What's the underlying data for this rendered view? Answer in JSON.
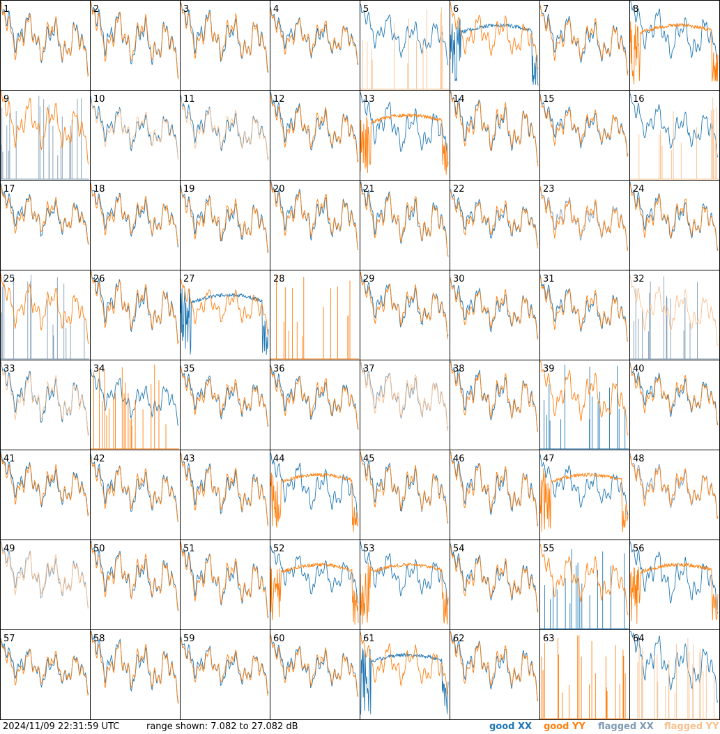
{
  "chart_data": {
    "type": "line",
    "layout": "small-multiples 8x8",
    "timestamp": "2024/11/09 22:31:59 UTC",
    "range_text": "range shown: 7.082 to 27.082 dB",
    "ylim": [
      7.082,
      27.082
    ],
    "legend": [
      {
        "label": "good XX",
        "color": "#1f77b4"
      },
      {
        "label": "good YY",
        "color": "#ff7f0e"
      },
      {
        "label": "flagged XX",
        "color": "#7f9bb5"
      },
      {
        "label": "flagged YY",
        "color": "#f9c08f"
      }
    ],
    "panels": [
      {
        "id": "1",
        "xx": "normal",
        "yy": "normal"
      },
      {
        "id": "2",
        "xx": "normal",
        "yy": "normal"
      },
      {
        "id": "3",
        "xx": "normal",
        "yy": "normal"
      },
      {
        "id": "4",
        "xx": "normal",
        "yy": "normal"
      },
      {
        "id": "5",
        "xx": "normal",
        "yy": "flagged-spikes"
      },
      {
        "id": "6",
        "xx": "degraded",
        "yy": "normal"
      },
      {
        "id": "7",
        "xx": "normal",
        "yy": "normal"
      },
      {
        "id": "8",
        "xx": "normal",
        "yy": "degraded"
      },
      {
        "id": "9",
        "xx": "flagged-spikes",
        "yy": "normal"
      },
      {
        "id": "10",
        "xx": "normal",
        "yy": "flagged"
      },
      {
        "id": "11",
        "xx": "normal",
        "yy": "flagged"
      },
      {
        "id": "12",
        "xx": "normal",
        "yy": "normal"
      },
      {
        "id": "13",
        "xx": "normal",
        "yy": "degraded"
      },
      {
        "id": "14",
        "xx": "normal",
        "yy": "normal"
      },
      {
        "id": "15",
        "xx": "normal",
        "yy": "normal"
      },
      {
        "id": "16",
        "xx": "normal",
        "yy": "flagged-spikes"
      },
      {
        "id": "17",
        "xx": "normal",
        "yy": "normal"
      },
      {
        "id": "18",
        "xx": "normal",
        "yy": "normal"
      },
      {
        "id": "19",
        "xx": "normal",
        "yy": "normal"
      },
      {
        "id": "20",
        "xx": "normal",
        "yy": "normal"
      },
      {
        "id": "21",
        "xx": "normal",
        "yy": "normal"
      },
      {
        "id": "22",
        "xx": "normal",
        "yy": "normal"
      },
      {
        "id": "23",
        "xx": "flagged",
        "yy": "normal"
      },
      {
        "id": "24",
        "xx": "normal",
        "yy": "normal"
      },
      {
        "id": "25",
        "xx": "flagged-spikes",
        "yy": "normal"
      },
      {
        "id": "26",
        "xx": "normal",
        "yy": "normal"
      },
      {
        "id": "27",
        "xx": "degraded",
        "yy": "normal"
      },
      {
        "id": "28",
        "xx": "none",
        "yy": "spikes"
      },
      {
        "id": "29",
        "xx": "normal",
        "yy": "normal"
      },
      {
        "id": "30",
        "xx": "normal",
        "yy": "normal"
      },
      {
        "id": "31",
        "xx": "normal",
        "yy": "normal"
      },
      {
        "id": "32",
        "xx": "flagged-spikes",
        "yy": "flagged"
      },
      {
        "id": "33",
        "xx": "normal",
        "yy": "flagged"
      },
      {
        "id": "34",
        "xx": "normal",
        "yy": "spikes"
      },
      {
        "id": "35",
        "xx": "normal",
        "yy": "normal"
      },
      {
        "id": "36",
        "xx": "normal",
        "yy": "normal"
      },
      {
        "id": "37",
        "xx": "flagged",
        "yy": "flagged"
      },
      {
        "id": "38",
        "xx": "normal",
        "yy": "normal"
      },
      {
        "id": "39",
        "xx": "spikes",
        "yy": "normal"
      },
      {
        "id": "40",
        "xx": "normal",
        "yy": "normal"
      },
      {
        "id": "41",
        "xx": "normal",
        "yy": "normal"
      },
      {
        "id": "42",
        "xx": "normal",
        "yy": "normal"
      },
      {
        "id": "43",
        "xx": "normal",
        "yy": "normal"
      },
      {
        "id": "44",
        "xx": "normal",
        "yy": "degraded"
      },
      {
        "id": "45",
        "xx": "normal",
        "yy": "normal"
      },
      {
        "id": "46",
        "xx": "normal",
        "yy": "normal"
      },
      {
        "id": "47",
        "xx": "normal",
        "yy": "degraded"
      },
      {
        "id": "48",
        "xx": "flagged",
        "yy": "normal"
      },
      {
        "id": "49",
        "xx": "flagged",
        "yy": "flagged"
      },
      {
        "id": "50",
        "xx": "normal",
        "yy": "normal"
      },
      {
        "id": "51",
        "xx": "normal",
        "yy": "normal"
      },
      {
        "id": "52",
        "xx": "normal",
        "yy": "degraded"
      },
      {
        "id": "53",
        "xx": "normal",
        "yy": "degraded"
      },
      {
        "id": "54",
        "xx": "normal",
        "yy": "normal"
      },
      {
        "id": "55",
        "xx": "spikes",
        "yy": "normal"
      },
      {
        "id": "56",
        "xx": "normal",
        "yy": "degraded"
      },
      {
        "id": "57",
        "xx": "normal",
        "yy": "normal"
      },
      {
        "id": "58",
        "xx": "normal",
        "yy": "normal"
      },
      {
        "id": "59",
        "xx": "normal",
        "yy": "normal"
      },
      {
        "id": "60",
        "xx": "normal",
        "yy": "normal"
      },
      {
        "id": "61",
        "xx": "degraded",
        "yy": "normal"
      },
      {
        "id": "62",
        "xx": "normal",
        "yy": "normal"
      },
      {
        "id": "63",
        "xx": "none",
        "yy": "spikes"
      },
      {
        "id": "64",
        "xx": "normal",
        "yy": "flagged-spikes"
      }
    ]
  }
}
